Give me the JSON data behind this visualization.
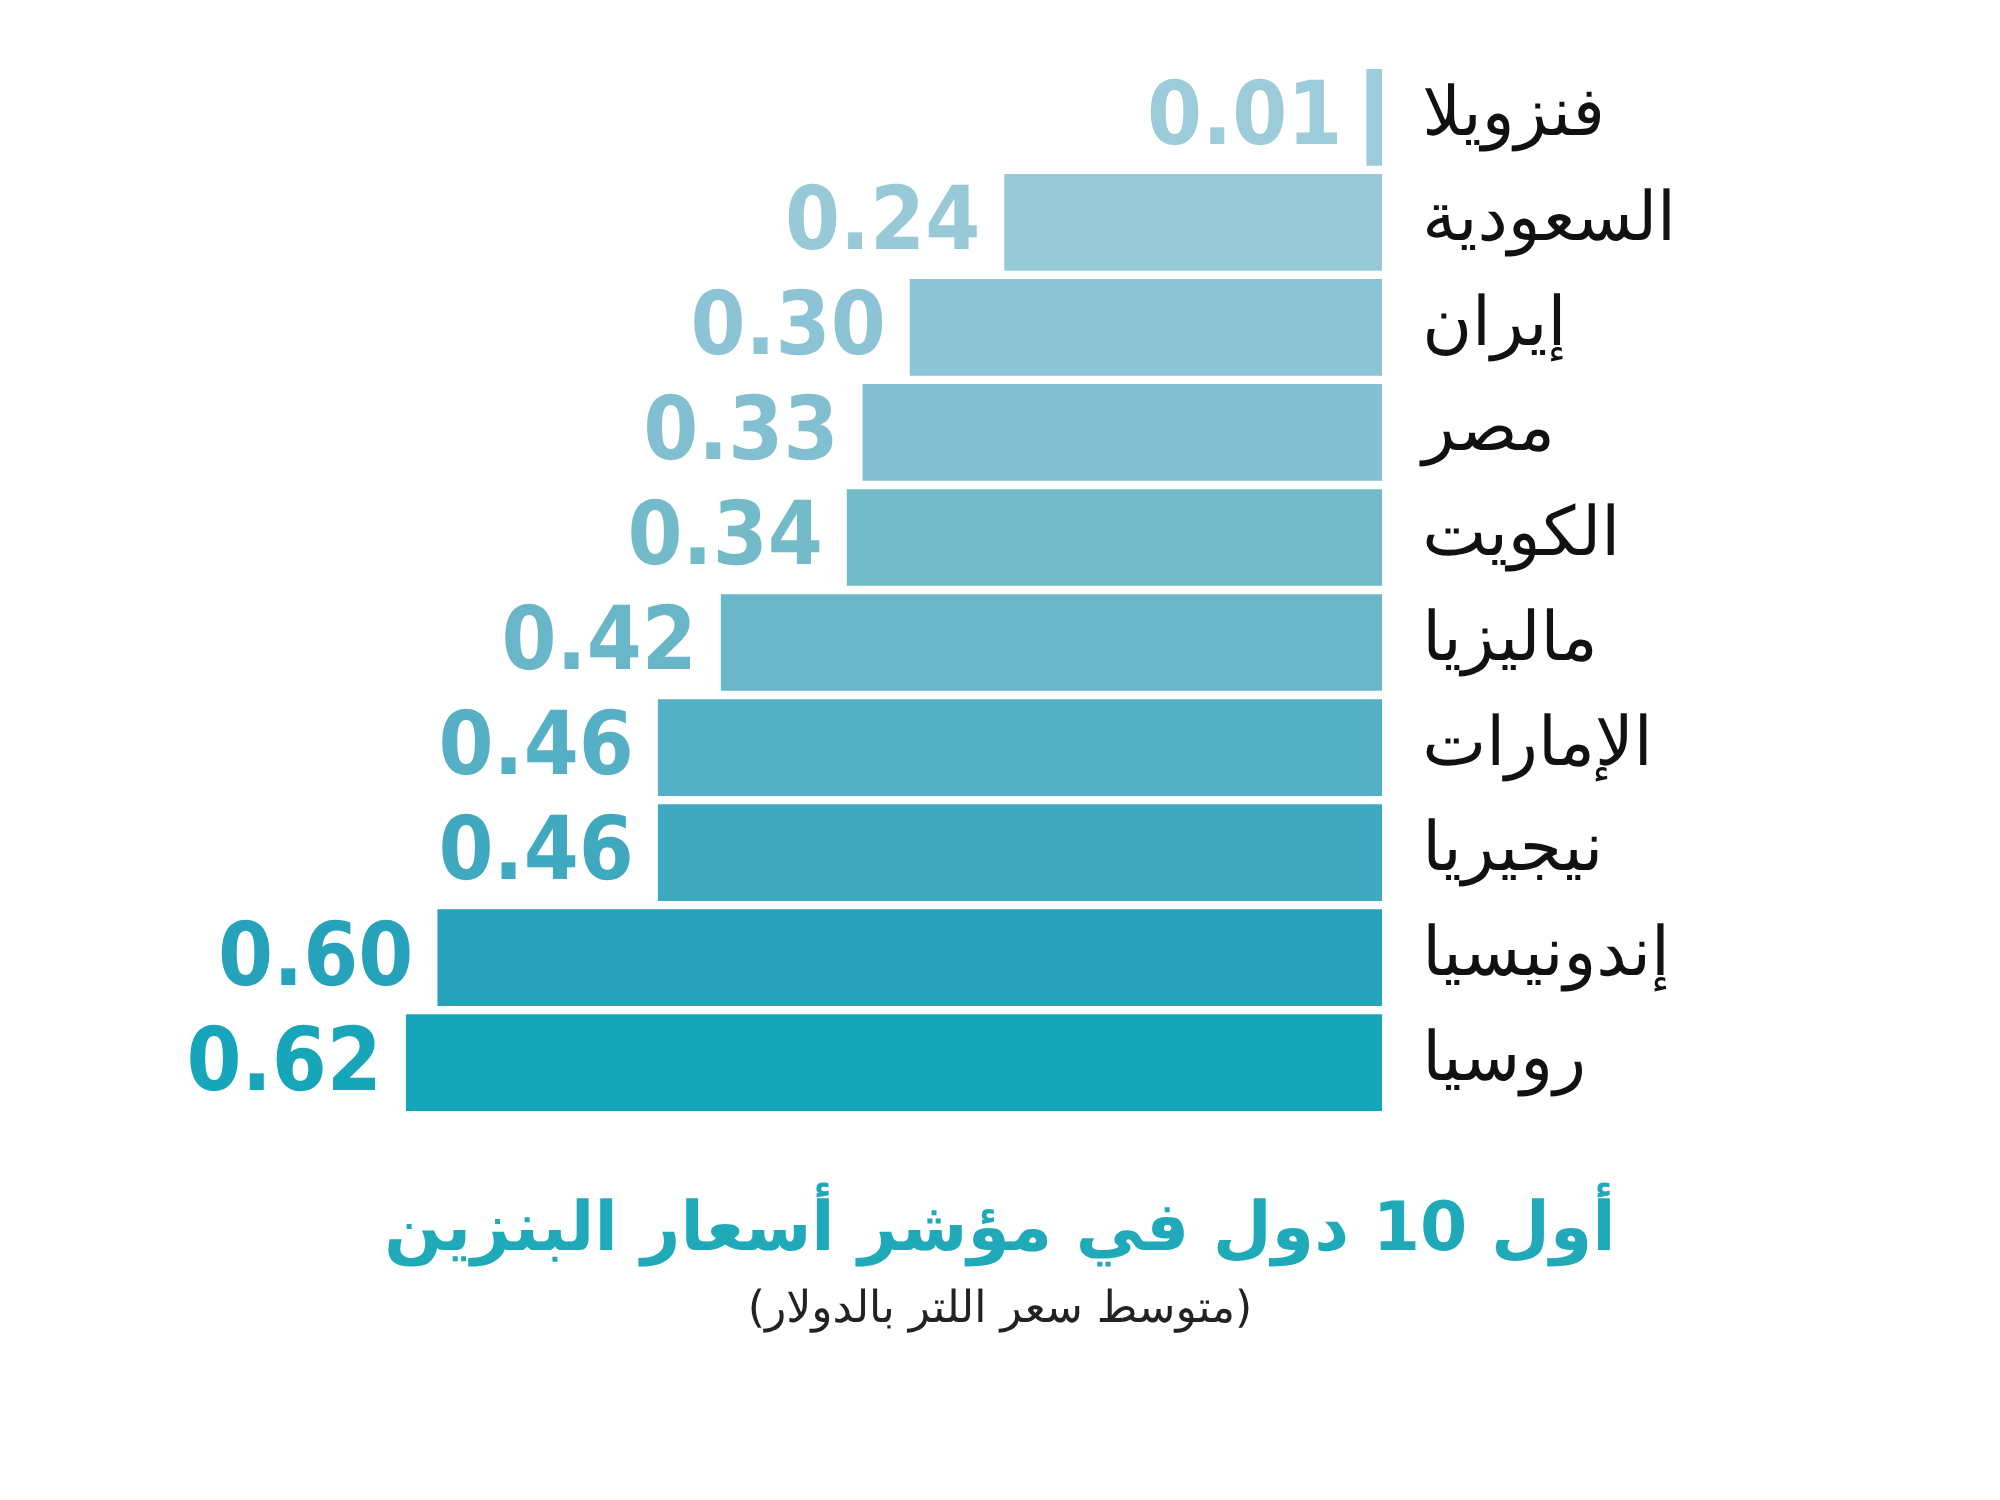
{
  "chart_data": {
    "type": "bar",
    "orientation": "horizontal",
    "title": "أول 10 دول في مؤشر أسعار البنزين",
    "subtitle": "(متوسط سعر اللتر بالدولار)",
    "categories": [
      "فنزويلا",
      "السعودية",
      "إيران",
      "مصر",
      "الكويت",
      "ماليزيا",
      "الإمارات",
      "نيجيريا",
      "إندونيسيا",
      "روسيا"
    ],
    "values": [
      0.01,
      0.24,
      0.3,
      0.33,
      0.34,
      0.42,
      0.46,
      0.46,
      0.6,
      0.62
    ],
    "colors": [
      "#9ccbd9",
      "#98c9d7",
      "#8cc4d5",
      "#82bfd1",
      "#74bbca",
      "#68b6c8",
      "#55b0c5",
      "#40a9c0",
      "#26a3ba",
      "#17a5b9"
    ],
    "value_labels": [
      "0.01",
      "0.24",
      "0.30",
      "0.33",
      "0.34",
      "0.42",
      "0.46",
      "0.46",
      "0.60",
      "0.62"
    ],
    "grid": false,
    "legend": false,
    "tick_labels": "y"
  }
}
